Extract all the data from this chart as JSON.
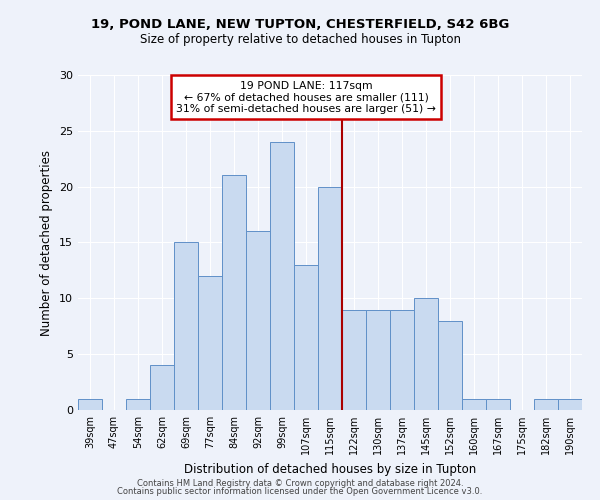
{
  "title_line1": "19, POND LANE, NEW TUPTON, CHESTERFIELD, S42 6BG",
  "title_line2": "Size of property relative to detached houses in Tupton",
  "xlabel": "Distribution of detached houses by size in Tupton",
  "ylabel": "Number of detached properties",
  "categories": [
    "39sqm",
    "47sqm",
    "54sqm",
    "62sqm",
    "69sqm",
    "77sqm",
    "84sqm",
    "92sqm",
    "99sqm",
    "107sqm",
    "115sqm",
    "122sqm",
    "130sqm",
    "137sqm",
    "145sqm",
    "152sqm",
    "160sqm",
    "167sqm",
    "175sqm",
    "182sqm",
    "190sqm"
  ],
  "values": [
    1,
    0,
    1,
    4,
    15,
    12,
    21,
    16,
    24,
    13,
    20,
    9,
    9,
    9,
    10,
    8,
    1,
    1,
    0,
    1,
    1
  ],
  "bar_color": "#c9daf0",
  "bar_edge_color": "#6090c8",
  "bar_width": 1.0,
  "vline_x": 10.5,
  "vline_color": "#aa0000",
  "annotation_text": "19 POND LANE: 117sqm\n← 67% of detached houses are smaller (111)\n31% of semi-detached houses are larger (51) →",
  "annotation_box_color": "#ffffff",
  "annotation_box_edge_color": "#cc0000",
  "ylim": [
    0,
    30
  ],
  "yticks": [
    0,
    5,
    10,
    15,
    20,
    25,
    30
  ],
  "background_color": "#eef2fa",
  "footer_line1": "Contains HM Land Registry data © Crown copyright and database right 2024.",
  "footer_line2": "Contains public sector information licensed under the Open Government Licence v3.0."
}
